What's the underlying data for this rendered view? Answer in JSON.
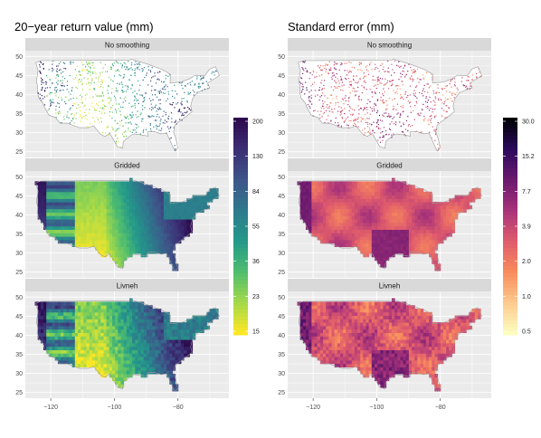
{
  "left_panel": {
    "title": "20−year return value (mm)",
    "facets": [
      "No smoothing",
      "Gridded",
      "Livneh"
    ],
    "colorbar_ticks": [
      "200",
      "130",
      "84",
      "55",
      "36",
      "23",
      "15"
    ],
    "palette": [
      "#2d0a4e",
      "#3b2f74",
      "#3e5589",
      "#2d7a8c",
      "#24998a",
      "#4fbd6f",
      "#a3d94a",
      "#fde725"
    ]
  },
  "right_panel": {
    "title": "Standard error (mm)",
    "facets": [
      "No smoothing",
      "Gridded",
      "Livneh"
    ],
    "colorbar_ticks": [
      "30.0",
      "15.2",
      "7.7",
      "3.9",
      "2.0",
      "1.0",
      "0.5"
    ],
    "palette": [
      "#000004",
      "#2c0a5e",
      "#6b1a6e",
      "#a8337a",
      "#e05c6c",
      "#f88c5c",
      "#fdc98f",
      "#fcfdbf"
    ]
  },
  "axes": {
    "y_ticks": [
      "50",
      "45",
      "40",
      "35",
      "30",
      "25"
    ],
    "x_ticks": [
      "−120",
      "−100",
      "−80"
    ]
  },
  "colors": {
    "panel_bg": "#ebebeb",
    "strip_bg": "#d9d9d9",
    "grid": "#ffffff"
  }
}
